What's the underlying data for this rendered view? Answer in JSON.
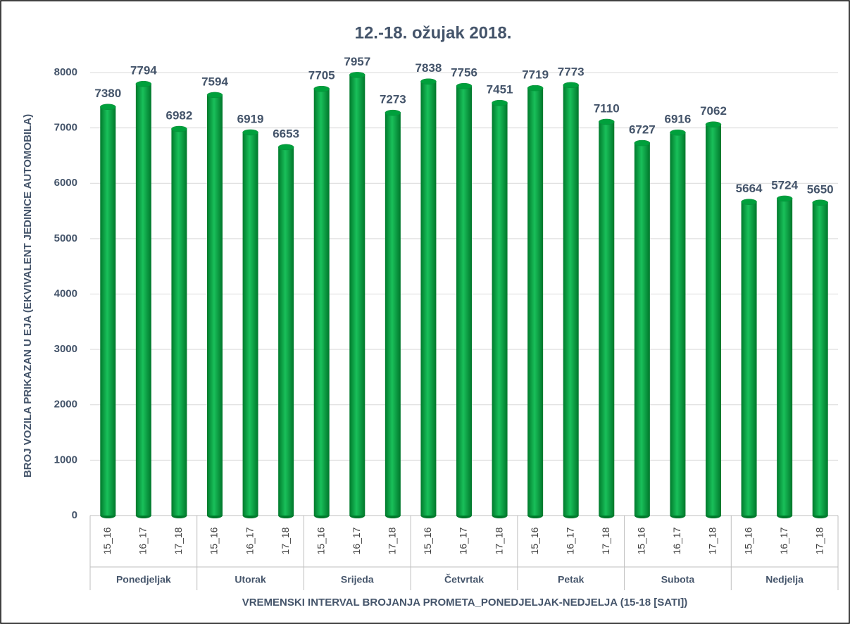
{
  "chart_data": {
    "type": "bar",
    "title": "12.-18. ožujak 2018.",
    "y_label": "BROJ VOZILA PRIKAZAN U EJA (EKVIVALENT JEDINICE AUTOMOBILA)",
    "x_label": "VREMENSKI INTERVAL BROJANJA PROMETA_PONEDJELJAK-NEDJELJA  (15-18 [SATI])",
    "groups": [
      "Ponedjeljak",
      "Utorak",
      "Srijeda",
      "Četvrtak",
      "Petak",
      "Subota",
      "Nedjelja"
    ],
    "categories": [
      "15_16",
      "16_17",
      "17_18",
      "15_16",
      "16_17",
      "17_18",
      "15_16",
      "16_17",
      "17_18",
      "15_16",
      "16_17",
      "17_18",
      "15_16",
      "16_17",
      "17_18",
      "15_16",
      "16_17",
      "17_18",
      "15_16",
      "16_17",
      "17_18"
    ],
    "values": [
      7380,
      7794,
      6982,
      7594,
      6919,
      6653,
      7705,
      7957,
      7273,
      7838,
      7756,
      7451,
      7719,
      7773,
      7110,
      6727,
      6916,
      7062,
      5664,
      5724,
      5650
    ],
    "color": "#00a03c",
    "ylim": [
      0,
      8000
    ],
    "yticks": [
      0,
      1000,
      2000,
      3000,
      4000,
      5000,
      6000,
      7000,
      8000
    ],
    "grid": true
  }
}
